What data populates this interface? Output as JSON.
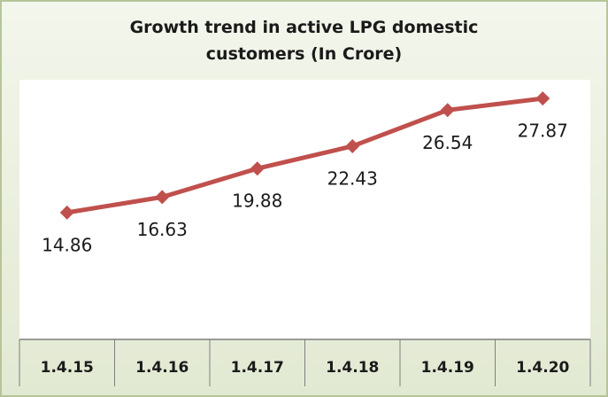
{
  "chart_data": {
    "type": "line",
    "title": "Growth trend in active LPG domestic customers (In Crore)",
    "categories": [
      "1.4.15",
      "1.4.16",
      "1.4.17",
      "1.4.18",
      "1.4.19",
      "1.4.20"
    ],
    "series": [
      {
        "name": "Active LPG domestic customers",
        "color": "#c0504d",
        "values": [
          14.86,
          16.63,
          19.88,
          22.43,
          26.54,
          27.87
        ]
      }
    ],
    "ylim": [
      0,
      30
    ]
  }
}
